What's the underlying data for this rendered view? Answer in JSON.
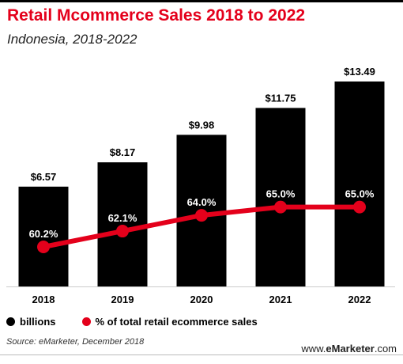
{
  "header": {
    "title": "Retail Mcommerce Sales 2018 to 2022",
    "subtitle": "Indonesia, 2018-2022"
  },
  "colors": {
    "bars": "#000000",
    "line": "#e4001b",
    "title": "#e4001b",
    "label_text": "#ffffff"
  },
  "legend": {
    "bars_label": "billions",
    "line_label": "% of total retail ecommerce sales"
  },
  "footer": {
    "source": "Source: eMarketer, December 2018",
    "brand_prefix": "www.",
    "brand_bold": "eMarketer",
    "brand_suffix": ".com"
  },
  "chart_data": {
    "type": "bar",
    "categories": [
      "2018",
      "2019",
      "2020",
      "2021",
      "2022"
    ],
    "series": [
      {
        "name": "billions",
        "type": "bar",
        "values": [
          6.57,
          8.17,
          9.98,
          11.75,
          13.49
        ],
        "labels": [
          "$6.57",
          "$8.17",
          "$9.98",
          "$11.75",
          "$13.49"
        ]
      },
      {
        "name": "% of total retail ecommerce sales",
        "type": "line",
        "values": [
          60.2,
          62.1,
          64.0,
          65.0,
          65.0
        ],
        "labels": [
          "60.2%",
          "62.1%",
          "64.0%",
          "65.0%",
          "65.0%"
        ]
      }
    ],
    "title": "Retail Mcommerce Sales 2018 to 2022",
    "subtitle": "Indonesia, 2018-2022",
    "grid": false,
    "legend_position": "bottom"
  }
}
